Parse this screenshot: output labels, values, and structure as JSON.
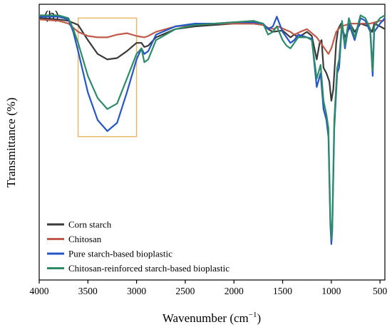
{
  "chart_data": {
    "type": "line",
    "panel_label": "(b)",
    "xlabel": "Wavenumber (cm",
    "xlabel_exponent": "−1",
    "xlabel_suffix": ")",
    "ylabel": "Transmittance (%)",
    "xlim": [
      4000,
      450
    ],
    "x_reversed": true,
    "ylim": [
      0,
      100
    ],
    "x_ticks": [
      4000,
      3500,
      3000,
      2500,
      2000,
      1500,
      1000,
      500
    ],
    "x_tick_labels": [
      "4000",
      "3500",
      "3000",
      "2500",
      "2000",
      "1500",
      "1000",
      "500"
    ],
    "y_ticks_shown": false,
    "highlight_region": {
      "x_range": [
        3600,
        3000
      ],
      "y_range": [
        52,
        95
      ],
      "color": "#e8b96b"
    },
    "legend_position": "bottom-left",
    "series": [
      {
        "name": "Corn starch",
        "color": "#3a3a3a",
        "points": [
          [
            4000,
            95
          ],
          [
            3800,
            94.5
          ],
          [
            3700,
            94
          ],
          [
            3600,
            92.5
          ],
          [
            3500,
            87
          ],
          [
            3400,
            82
          ],
          [
            3300,
            80
          ],
          [
            3200,
            80.5
          ],
          [
            3100,
            83
          ],
          [
            3000,
            86
          ],
          [
            2950,
            86
          ],
          [
            2920,
            84.5
          ],
          [
            2880,
            85
          ],
          [
            2800,
            88
          ],
          [
            2600,
            91
          ],
          [
            2400,
            92
          ],
          [
            2200,
            92.5
          ],
          [
            2000,
            93
          ],
          [
            1800,
            93
          ],
          [
            1700,
            92.5
          ],
          [
            1650,
            91
          ],
          [
            1600,
            90
          ],
          [
            1500,
            90.5
          ],
          [
            1420,
            88
          ],
          [
            1380,
            89
          ],
          [
            1340,
            88
          ],
          [
            1250,
            90
          ],
          [
            1200,
            88.5
          ],
          [
            1150,
            80
          ],
          [
            1120,
            86
          ],
          [
            1100,
            87
          ],
          [
            1080,
            77
          ],
          [
            1050,
            75
          ],
          [
            1020,
            72
          ],
          [
            1000,
            65
          ],
          [
            980,
            69
          ],
          [
            950,
            86
          ],
          [
            930,
            91
          ],
          [
            900,
            93
          ],
          [
            860,
            88
          ],
          [
            800,
            92.5
          ],
          [
            760,
            90
          ],
          [
            700,
            93
          ],
          [
            620,
            92
          ],
          [
            580,
            90
          ],
          [
            560,
            93
          ],
          [
            500,
            92
          ],
          [
            450,
            91
          ]
        ]
      },
      {
        "name": "Chitosan",
        "color": "#c05a4a",
        "points": [
          [
            4000,
            94.5
          ],
          [
            3800,
            94
          ],
          [
            3700,
            93
          ],
          [
            3600,
            90
          ],
          [
            3500,
            88.5
          ],
          [
            3400,
            88
          ],
          [
            3300,
            88
          ],
          [
            3200,
            89
          ],
          [
            3100,
            89.5
          ],
          [
            3000,
            88.5
          ],
          [
            2920,
            88
          ],
          [
            2880,
            88.5
          ],
          [
            2800,
            90
          ],
          [
            2600,
            92
          ],
          [
            2400,
            92.5
          ],
          [
            2200,
            93
          ],
          [
            2000,
            93
          ],
          [
            1800,
            93
          ],
          [
            1700,
            92.5
          ],
          [
            1650,
            91.5
          ],
          [
            1590,
            91
          ],
          [
            1550,
            92
          ],
          [
            1420,
            90
          ],
          [
            1380,
            89
          ],
          [
            1320,
            90
          ],
          [
            1250,
            91
          ],
          [
            1150,
            88
          ],
          [
            1070,
            84
          ],
          [
            1030,
            82
          ],
          [
            1000,
            84
          ],
          [
            950,
            90
          ],
          [
            900,
            92
          ],
          [
            800,
            93
          ],
          [
            700,
            93
          ],
          [
            600,
            93
          ],
          [
            500,
            94
          ],
          [
            450,
            94
          ]
        ]
      },
      {
        "name": "Pure starch-based bioplastic",
        "color": "#2456c8",
        "points": [
          [
            4000,
            95.5
          ],
          [
            3800,
            95.5
          ],
          [
            3700,
            94.5
          ],
          [
            3650,
            90
          ],
          [
            3600,
            83
          ],
          [
            3500,
            68
          ],
          [
            3400,
            58
          ],
          [
            3300,
            54
          ],
          [
            3200,
            57
          ],
          [
            3100,
            68
          ],
          [
            3000,
            80
          ],
          [
            2950,
            84
          ],
          [
            2920,
            82
          ],
          [
            2880,
            83
          ],
          [
            2800,
            89
          ],
          [
            2600,
            92
          ],
          [
            2400,
            93
          ],
          [
            2200,
            93
          ],
          [
            2000,
            93.5
          ],
          [
            1800,
            93.5
          ],
          [
            1700,
            93
          ],
          [
            1650,
            91
          ],
          [
            1600,
            92
          ],
          [
            1560,
            95.5
          ],
          [
            1500,
            90
          ],
          [
            1460,
            88
          ],
          [
            1420,
            86
          ],
          [
            1380,
            87
          ],
          [
            1340,
            89
          ],
          [
            1250,
            88
          ],
          [
            1200,
            87.5
          ],
          [
            1150,
            70
          ],
          [
            1110,
            75
          ],
          [
            1080,
            62
          ],
          [
            1050,
            58
          ],
          [
            1030,
            52
          ],
          [
            1010,
            20
          ],
          [
            1000,
            13
          ],
          [
            990,
            18
          ],
          [
            970,
            55
          ],
          [
            940,
            75
          ],
          [
            920,
            77
          ],
          [
            890,
            93
          ],
          [
            860,
            84
          ],
          [
            820,
            93
          ],
          [
            760,
            87
          ],
          [
            700,
            95
          ],
          [
            650,
            94
          ],
          [
            600,
            90
          ],
          [
            575,
            74
          ],
          [
            560,
            90
          ],
          [
            500,
            93
          ],
          [
            450,
            95
          ]
        ]
      },
      {
        "name": "Chitosan-reinforced starch-based bioplastic",
        "color": "#2e8b67",
        "points": [
          [
            4000,
            96
          ],
          [
            3800,
            96
          ],
          [
            3700,
            95
          ],
          [
            3650,
            91
          ],
          [
            3600,
            86
          ],
          [
            3500,
            74
          ],
          [
            3400,
            66
          ],
          [
            3300,
            62
          ],
          [
            3200,
            64
          ],
          [
            3100,
            73
          ],
          [
            3000,
            82
          ],
          [
            2950,
            84
          ],
          [
            2920,
            79
          ],
          [
            2880,
            80
          ],
          [
            2800,
            87
          ],
          [
            2600,
            91
          ],
          [
            2400,
            92.5
          ],
          [
            2200,
            93
          ],
          [
            2000,
            93.5
          ],
          [
            1800,
            94
          ],
          [
            1700,
            93
          ],
          [
            1650,
            89
          ],
          [
            1600,
            90
          ],
          [
            1560,
            92
          ],
          [
            1500,
            87
          ],
          [
            1460,
            85
          ],
          [
            1420,
            84
          ],
          [
            1380,
            86
          ],
          [
            1340,
            88
          ],
          [
            1250,
            88
          ],
          [
            1200,
            87
          ],
          [
            1150,
            73
          ],
          [
            1110,
            78
          ],
          [
            1080,
            65
          ],
          [
            1050,
            60
          ],
          [
            1030,
            55
          ],
          [
            1010,
            22
          ],
          [
            1000,
            15
          ],
          [
            990,
            20
          ],
          [
            970,
            58
          ],
          [
            940,
            77
          ],
          [
            920,
            80
          ],
          [
            890,
            94
          ],
          [
            860,
            85
          ],
          [
            820,
            95
          ],
          [
            760,
            88
          ],
          [
            700,
            96
          ],
          [
            650,
            95
          ],
          [
            600,
            91
          ],
          [
            575,
            76
          ],
          [
            560,
            92
          ],
          [
            500,
            95
          ],
          [
            450,
            96
          ]
        ]
      }
    ]
  }
}
